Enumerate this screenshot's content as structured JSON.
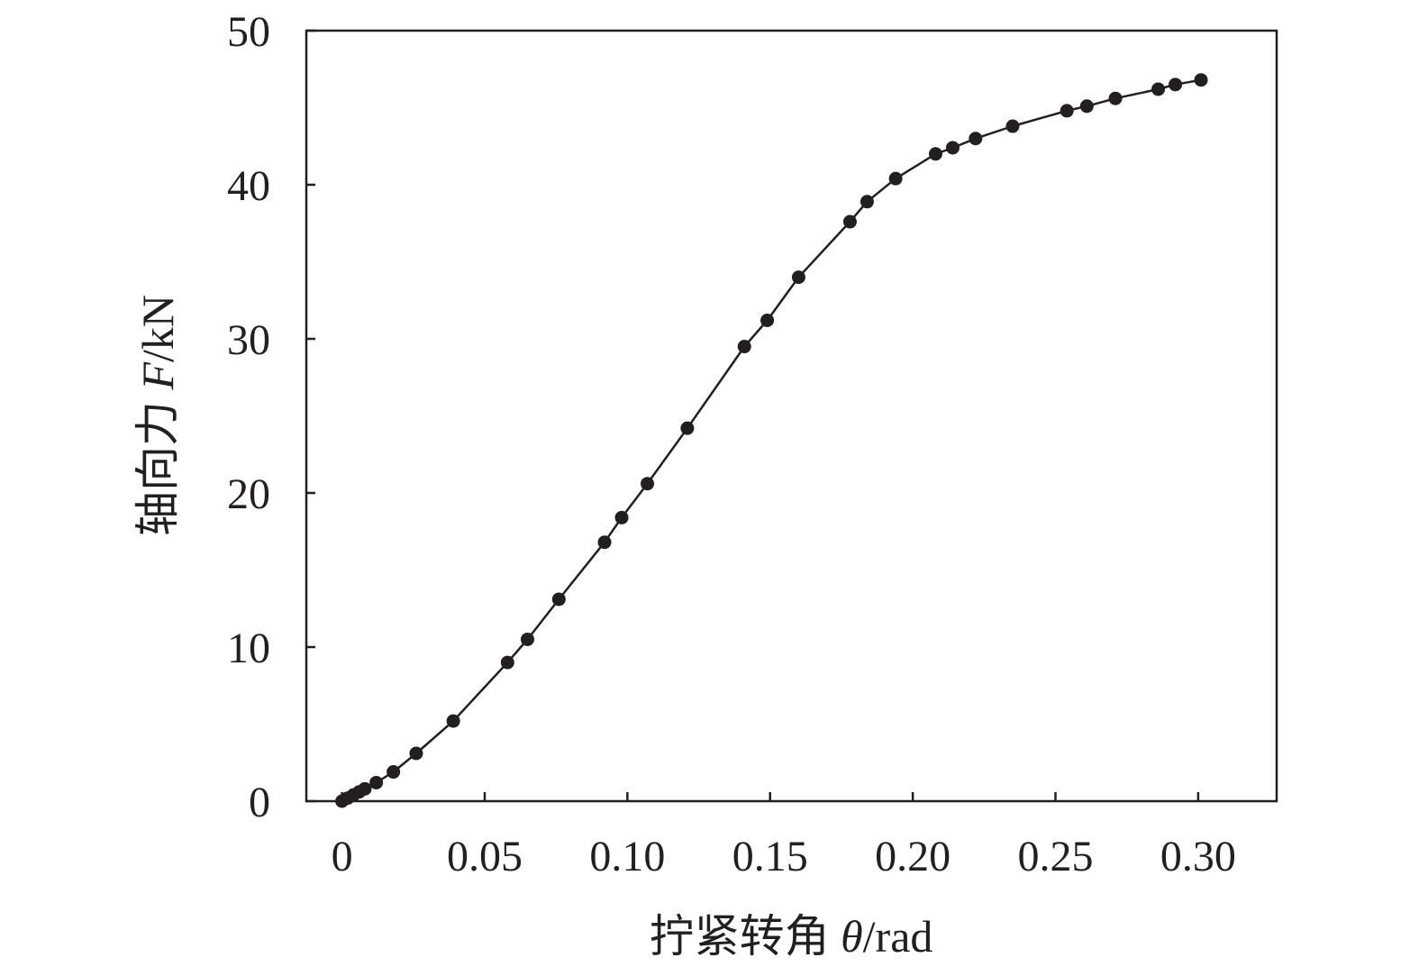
{
  "chart_data": {
    "type": "line",
    "title": "",
    "xlabel": {
      "prefix": "拧紧转角 ",
      "symbol": "θ",
      "unit": "/rad"
    },
    "ylabel": {
      "prefix": "轴向力 ",
      "symbol": "F",
      "unit": "/kN"
    },
    "xlim": [
      -0.0125,
      0.3275
    ],
    "ylim": [
      0,
      50
    ],
    "xticks": [
      0,
      0.05,
      0.1,
      0.15,
      0.2,
      0.25,
      0.3
    ],
    "xtick_labels": [
      "0",
      "0.05",
      "0.10",
      "0.15",
      "0.20",
      "0.25",
      "0.30"
    ],
    "yticks": [
      0,
      10,
      20,
      30,
      40,
      50
    ],
    "ytick_labels": [
      "0",
      "10",
      "20",
      "30",
      "40",
      "50"
    ],
    "grid": false,
    "legend": "none",
    "colors": {
      "line": "#231f20",
      "marker": "#231f20",
      "axis": "#231f20"
    },
    "series": [
      {
        "x": [
          0.0,
          0.002,
          0.004,
          0.006,
          0.008,
          0.012,
          0.018,
          0.026,
          0.039,
          0.058,
          0.065,
          0.076,
          0.092,
          0.098,
          0.107,
          0.121,
          0.141,
          0.149,
          0.16,
          0.178,
          0.184,
          0.194,
          0.208,
          0.214,
          0.222,
          0.235,
          0.254,
          0.261,
          0.271,
          0.286,
          0.292,
          0.301
        ],
        "y": [
          0.0,
          0.2,
          0.4,
          0.6,
          0.8,
          1.2,
          1.9,
          3.1,
          5.2,
          9.0,
          10.5,
          13.1,
          16.8,
          18.4,
          20.6,
          24.2,
          29.5,
          31.2,
          34.0,
          37.6,
          38.9,
          40.4,
          42.0,
          42.4,
          43.0,
          43.8,
          44.8,
          45.1,
          45.6,
          46.2,
          46.5,
          46.8
        ]
      }
    ]
  }
}
